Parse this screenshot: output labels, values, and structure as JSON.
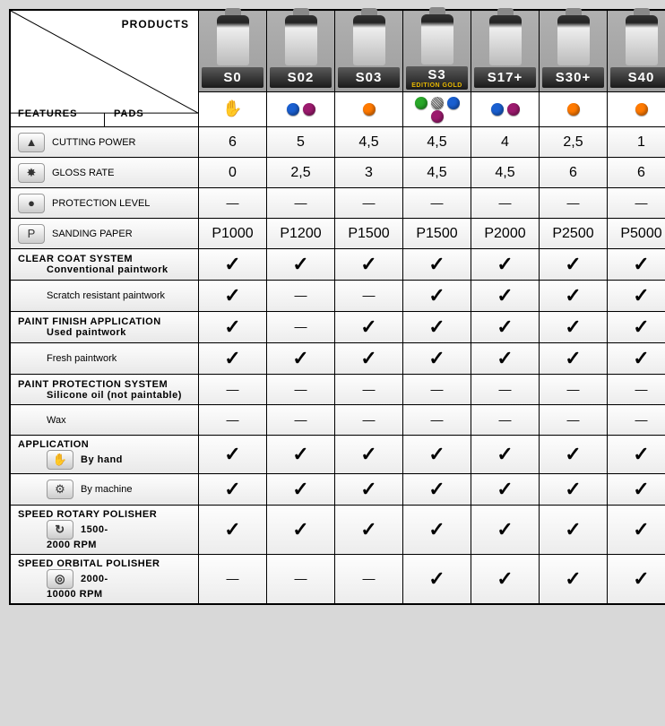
{
  "header": {
    "products_label": "PRODUCTS",
    "features_label": "FEATURES",
    "pads_label": "PADS"
  },
  "products": [
    {
      "code": "S0",
      "gold": false,
      "pads": {
        "hand": true,
        "dots": []
      }
    },
    {
      "code": "S02",
      "gold": false,
      "pads": {
        "hand": false,
        "dots": [
          "#1a5fd0",
          "#9c1a6e"
        ]
      }
    },
    {
      "code": "S03",
      "gold": false,
      "pads": {
        "hand": false,
        "dots": [
          "#ff7a00"
        ]
      }
    },
    {
      "code": "S3",
      "gold": true,
      "gold_label": "EDITION GOLD",
      "pads": {
        "hand": false,
        "dots": [
          "#2aa82a",
          "mesh",
          "#1a5fd0",
          "#9c1a6e"
        ]
      }
    },
    {
      "code": "S17+",
      "gold": false,
      "pads": {
        "hand": false,
        "dots": [
          "#1a5fd0",
          "#9c1a6e"
        ]
      }
    },
    {
      "code": "S30+",
      "gold": false,
      "pads": {
        "hand": false,
        "dots": [
          "#ff7a00"
        ]
      }
    },
    {
      "code": "S40",
      "gold": false,
      "pads": {
        "hand": false,
        "dots": [
          "#ff7a00"
        ]
      }
    }
  ],
  "rows": [
    {
      "type": "feat",
      "icon": "▲",
      "label": "CUTTING POWER",
      "cells": [
        "6",
        "5",
        "4,5",
        "4,5",
        "4",
        "2,5",
        "1"
      ]
    },
    {
      "type": "feat",
      "icon": "✸",
      "label": "GLOSS RATE",
      "cells": [
        "0",
        "2,5",
        "3",
        "4,5",
        "4,5",
        "6",
        "6"
      ]
    },
    {
      "type": "feat",
      "icon": "●",
      "label": "PROTECTION LEVEL",
      "cells": [
        "dash",
        "dash",
        "dash",
        "dash",
        "dash",
        "dash",
        "dash"
      ]
    },
    {
      "type": "feat",
      "icon": "P",
      "label": "SANDING PAPER",
      "cells": [
        "P1000",
        "P1200",
        "P1500",
        "P1500",
        "P2000",
        "P2500",
        "P5000"
      ]
    },
    {
      "type": "section",
      "label": "CLEAR COAT SYSTEM",
      "sub": "Conventional paintwork",
      "cells": [
        "check",
        "check",
        "check",
        "check",
        "check",
        "check",
        "check"
      ]
    },
    {
      "type": "sub",
      "label": "Scratch resistant paintwork",
      "cells": [
        "check",
        "dash",
        "dash",
        "check",
        "check",
        "check",
        "check"
      ]
    },
    {
      "type": "section",
      "label": "PAINT FINISH APPLICATION",
      "sub": "Used paintwork",
      "cells": [
        "check",
        "dash",
        "check",
        "check",
        "check",
        "check",
        "check"
      ]
    },
    {
      "type": "sub",
      "label": "Fresh paintwork",
      "cells": [
        "check",
        "check",
        "check",
        "check",
        "check",
        "check",
        "check"
      ]
    },
    {
      "type": "section",
      "label": "PAINT PROTECTION SYSTEM",
      "sub": "Silicone oil (not paintable)",
      "cells": [
        "dash",
        "dash",
        "dash",
        "dash",
        "dash",
        "dash",
        "dash"
      ]
    },
    {
      "type": "sub",
      "label": "Wax",
      "cells": [
        "dash",
        "dash",
        "dash",
        "dash",
        "dash",
        "dash",
        "dash"
      ]
    },
    {
      "type": "section",
      "label": "APPLICATION",
      "sub": "By hand",
      "icon": "✋",
      "cells": [
        "check",
        "check",
        "check",
        "check",
        "check",
        "check",
        "check"
      ]
    },
    {
      "type": "sub",
      "label": "By machine",
      "icon": "⚙",
      "cells": [
        "check",
        "check",
        "check",
        "check",
        "check",
        "check",
        "check"
      ]
    },
    {
      "type": "section",
      "label": "SPEED ROTARY POLISHER",
      "sub": "1500-\n2000 RPM",
      "icon": "↻",
      "cells": [
        "check",
        "check",
        "check",
        "check",
        "check",
        "check",
        "check"
      ]
    },
    {
      "type": "section",
      "label": "SPEED ORBITAL POLISHER",
      "sub": "2000-\n10000 RPM",
      "icon": "◎",
      "cells": [
        "dash",
        "dash",
        "dash",
        "check",
        "check",
        "check",
        "check"
      ]
    }
  ]
}
